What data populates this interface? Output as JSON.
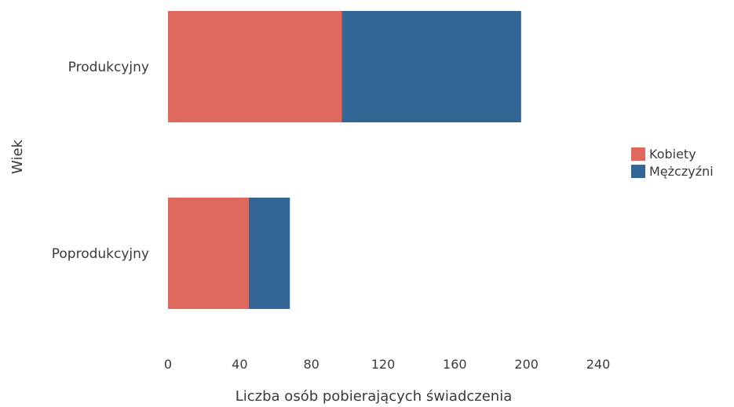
{
  "chart_data": {
    "type": "bar",
    "orientation": "horizontal",
    "stacked": true,
    "categories": [
      "Produkcyjny",
      "Poprodukcyjny"
    ],
    "series": [
      {
        "name": "Kobiety",
        "values": [
          97,
          45
        ],
        "color": "#e0695e"
      },
      {
        "name": "Mężczyźni",
        "values": [
          100,
          23
        ],
        "color": "#336595"
      }
    ],
    "xlabel": "Liczba osób pobierających świadczenia",
    "ylabel": "Wiek",
    "xlim": [
      0,
      240
    ],
    "xticks": [
      "0",
      "40",
      "80",
      "120",
      "160",
      "200",
      "240"
    ],
    "grid": false,
    "legend_position": "right"
  }
}
